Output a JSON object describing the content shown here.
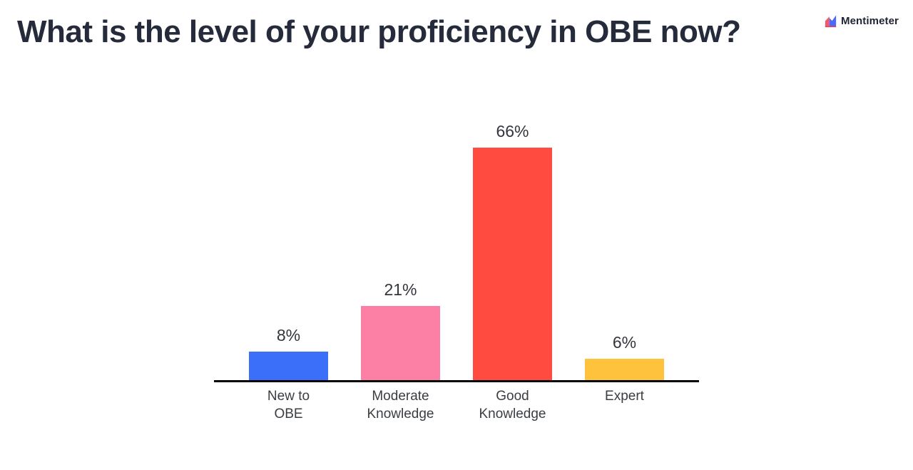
{
  "header": {
    "title": "What is the level of your proficiency in OBE now?"
  },
  "branding": {
    "logo_text": "Mentimeter",
    "logo_icon_colors": {
      "pink": "#f0596e",
      "blue": "#4a6bf5",
      "base_red": "#d6455d"
    }
  },
  "chart_data": {
    "type": "bar",
    "title": "What is the level of your proficiency in OBE now?",
    "categories": [
      "New to OBE",
      "Moderate Knowledge",
      "Good Knowledge",
      "Expert"
    ],
    "values": [
      8,
      21,
      66,
      6
    ],
    "value_labels": [
      "8%",
      "21%",
      "66%",
      "6%"
    ],
    "bar_colors": [
      "#3b6ffa",
      "#fc80a6",
      "#ff4b40",
      "#ffc23d"
    ],
    "unit": "%",
    "xlabel": "",
    "ylabel": "",
    "ylim": [
      0,
      100
    ],
    "grid": false,
    "legend": false,
    "axis_line_color": "#000000"
  }
}
